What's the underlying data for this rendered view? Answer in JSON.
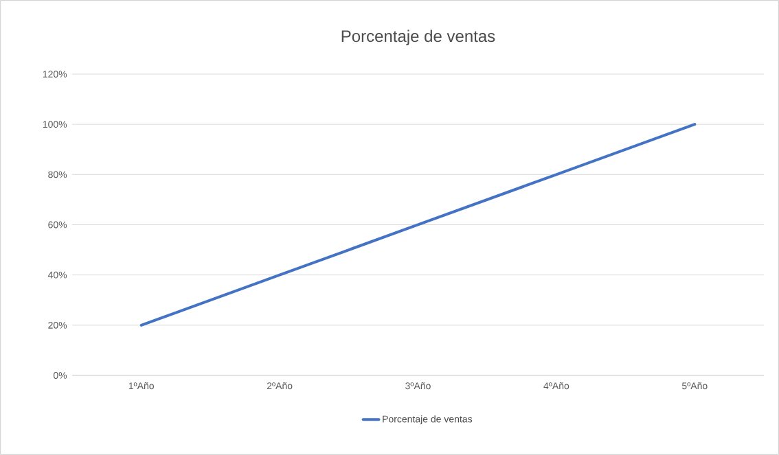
{
  "chart_data": {
    "type": "line",
    "title": "Porcentaje de ventas",
    "categories": [
      "1ºAño",
      "2ºAño",
      "3ºAño",
      "4ºAño",
      "5ºAño"
    ],
    "series": [
      {
        "name": "Porcentaje de ventas",
        "color": "#4472c4",
        "values": [
          20,
          40,
          60,
          80,
          100
        ]
      }
    ],
    "ylim": [
      0,
      120
    ],
    "yticks": [
      {
        "value": 0,
        "label": "0%"
      },
      {
        "value": 20,
        "label": "20%"
      },
      {
        "value": 40,
        "label": "40%"
      },
      {
        "value": 60,
        "label": "60%"
      },
      {
        "value": 80,
        "label": "80%"
      },
      {
        "value": 100,
        "label": "100%"
      },
      {
        "value": 120,
        "label": "120%"
      }
    ],
    "grid": "y",
    "legend": "bottom",
    "marker": "none",
    "line_style": "solid"
  }
}
